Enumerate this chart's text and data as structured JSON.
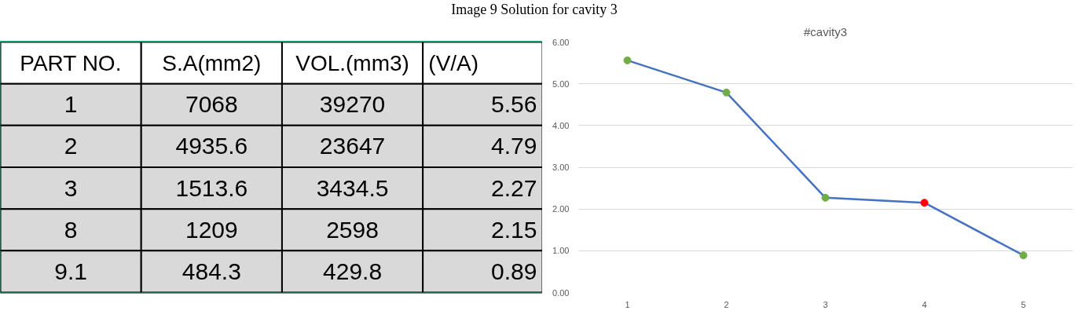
{
  "chart_data": [
    {
      "type": "other",
      "title": "Image 9 Solution for cavity 3",
      "categories": [
        "PART NO.",
        "S.A(mm2)",
        "VOL.(mm3)",
        "(V/A)"
      ],
      "annotations": [
        "1",
        "7068",
        "39270",
        "5.56",
        "2",
        "4935.6",
        "23647",
        "4.79",
        "3",
        "1513.6",
        "3434.5",
        "2.27",
        "8",
        "1209",
        "2598",
        "2.15",
        "9.1",
        "484.3",
        "429.8",
        "0.89"
      ]
    },
    {
      "type": "line",
      "title": "#cavity3",
      "categories": [
        "1",
        "2",
        "3",
        "4",
        "5"
      ],
      "series": [
        {
          "color": "#4472c4",
          "colors": [
            "#70ad47",
            "#70ad47",
            "#70ad47",
            "#ff0000",
            "#70ad47"
          ],
          "values": [
            5.56,
            4.79,
            2.27,
            2.15,
            0.89
          ]
        }
      ],
      "ylim": [
        0,
        6
      ],
      "yticks": [
        {
          "value": 0,
          "label": "0.00"
        },
        {
          "value": 1,
          "label": "1.00"
        },
        {
          "value": 2,
          "label": "2.00"
        },
        {
          "value": 3,
          "label": "3.00"
        },
        {
          "value": 4,
          "label": "4.00"
        },
        {
          "value": 5,
          "label": "5.00"
        },
        {
          "value": 6,
          "label": "6.00"
        }
      ],
      "grid": "y",
      "marker": "circle",
      "line_style": "solid"
    }
  ]
}
